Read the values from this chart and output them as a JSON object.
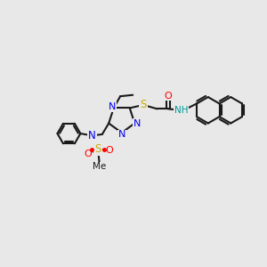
{
  "background_color": "#e8e8e8",
  "bond_color": "#1a1a1a",
  "figsize": [
    3.0,
    3.0
  ],
  "dpi": 100,
  "colors": {
    "N": "#0000ee",
    "O": "#ff0000",
    "S": "#ccaa00",
    "NH": "#009999",
    "C": "#1a1a1a"
  },
  "xlim": [
    0,
    10
  ],
  "ylim": [
    0,
    10
  ]
}
